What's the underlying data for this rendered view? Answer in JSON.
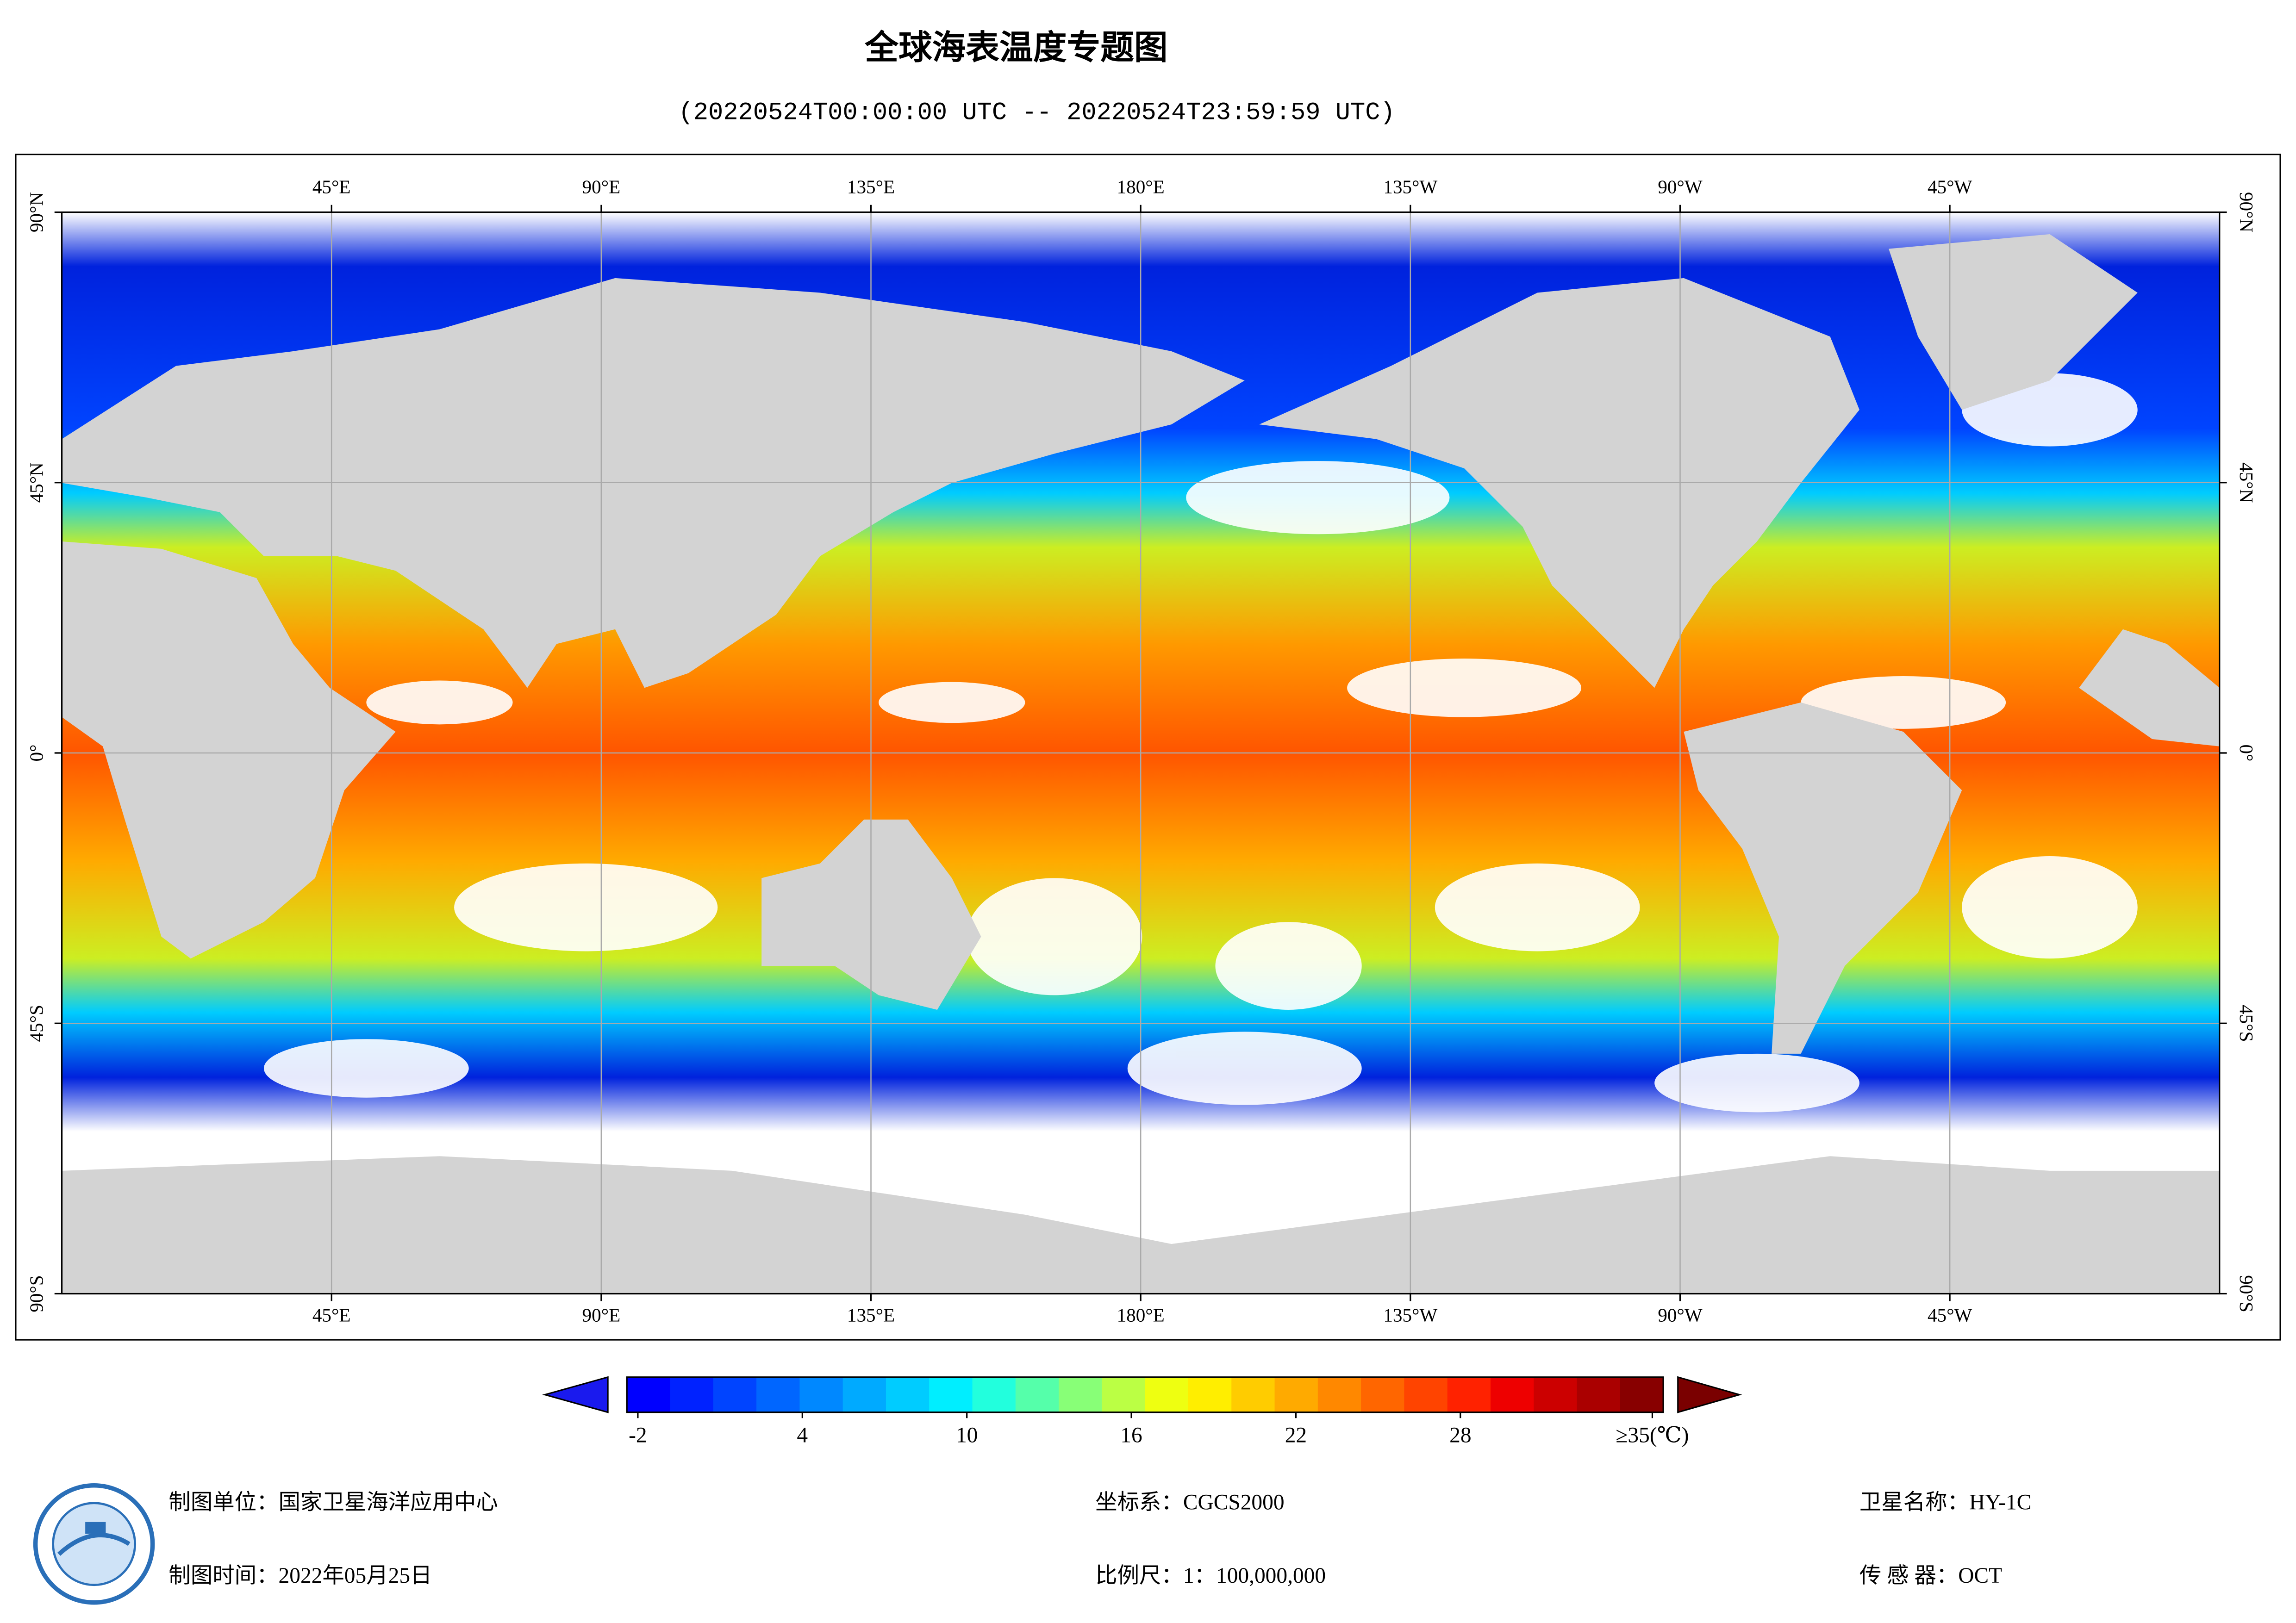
{
  "title": "全球海表温度专题图",
  "subtitle": "(20220524T00:00:00 UTC -- 20220524T23:59:59 UTC)",
  "map": {
    "lon_range": [
      0,
      360
    ],
    "lat_range": [
      -90,
      90
    ],
    "lon_ticks": [
      {
        "value": 45,
        "label": "45°E"
      },
      {
        "value": 90,
        "label": "90°E"
      },
      {
        "value": 135,
        "label": "135°E"
      },
      {
        "value": 180,
        "label": "180°E"
      },
      {
        "value": 225,
        "label": "135°W"
      },
      {
        "value": 270,
        "label": "90°W"
      },
      {
        "value": 315,
        "label": "45°W"
      }
    ],
    "lat_ticks": [
      {
        "value": 90,
        "label": "90°N"
      },
      {
        "value": 45,
        "label": "45°N"
      },
      {
        "value": 0,
        "label": "0°"
      },
      {
        "value": -45,
        "label": "45°S"
      },
      {
        "value": -90,
        "label": "90°S"
      }
    ]
  },
  "colorbar": {
    "range": [
      -2.4,
      35.4
    ],
    "ticks": [
      -2,
      4,
      10,
      16,
      22,
      28,
      {
        "value": 35,
        "label": "≥35(℃)"
      }
    ],
    "colors": [
      "#0000ff",
      "#0022ff",
      "#0044ff",
      "#0066ff",
      "#0088ff",
      "#00aaff",
      "#00ccff",
      "#00eeff",
      "#22ffdd",
      "#55ffaa",
      "#88ff77",
      "#bbff44",
      "#eeff11",
      "#ffee00",
      "#ffcc00",
      "#ffaa00",
      "#ff8800",
      "#ff6600",
      "#ff4400",
      "#ff2200",
      "#ee0000",
      "#cc0000",
      "#aa0000",
      "#880000"
    ],
    "under_color": "#1a1aee",
    "over_color": "#7a0000"
  },
  "footer": {
    "unit": "制图单位：国家卫星海洋应用中心",
    "date": "制图时间：2022年05月25日",
    "crs": "坐标系：CGCS2000",
    "scale": "比例尺：1：100,000,000",
    "satellite": "卫星名称：HY-1C",
    "sensor": "传 感 器：OCT"
  }
}
